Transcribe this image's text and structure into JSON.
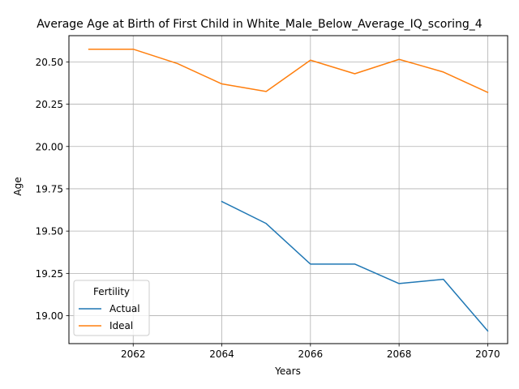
{
  "chart_data": {
    "type": "line",
    "title": "Average Age at Birth of First Child in White_Male_Below_Average_IQ_scoring_4",
    "xlabel": "Years",
    "ylabel": "Age",
    "xlim": [
      2060.55,
      2070.45
    ],
    "ylim": [
      18.835,
      20.655
    ],
    "xticks": [
      2062,
      2064,
      2066,
      2068,
      2070
    ],
    "yticks": [
      19.0,
      19.25,
      19.5,
      19.75,
      20.0,
      20.25,
      20.5
    ],
    "ytick_labels": [
      "19.00",
      "19.25",
      "19.50",
      "19.75",
      "20.00",
      "20.25",
      "20.50"
    ],
    "grid": true,
    "legend": {
      "title": "Fertility",
      "placement": "lower-left"
    },
    "series": [
      {
        "name": "Actual",
        "color": "#1f77b4",
        "x": [
          2064,
          2065,
          2066,
          2067,
          2068,
          2069,
          2070
        ],
        "y": [
          19.675,
          19.545,
          19.305,
          19.305,
          19.19,
          19.215,
          18.91
        ]
      },
      {
        "name": "Ideal",
        "color": "#ff7f0e",
        "x": [
          2061,
          2062,
          2063,
          2064,
          2065,
          2066,
          2067,
          2068,
          2069,
          2070
        ],
        "y": [
          20.575,
          20.575,
          20.49,
          20.37,
          20.325,
          20.51,
          20.43,
          20.515,
          20.44,
          20.32
        ]
      }
    ]
  }
}
